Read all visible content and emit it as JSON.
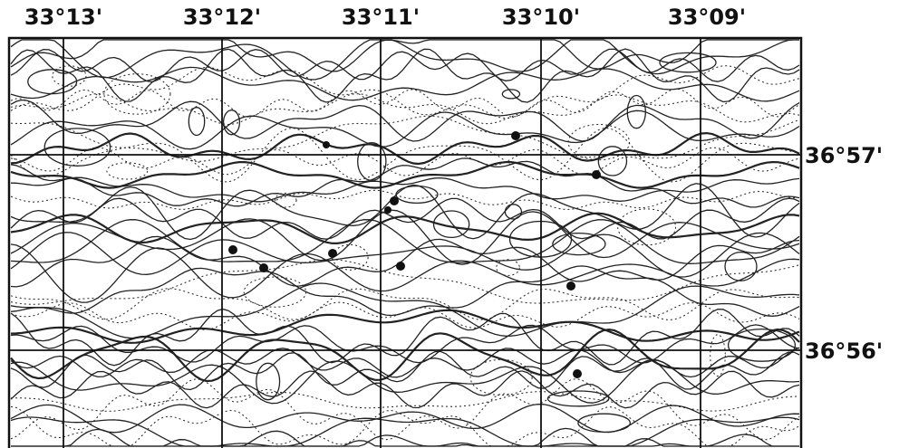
{
  "longitude_labels": [
    "33°13'",
    "33°12'",
    "33°11'",
    "33°10'",
    "33°09'"
  ],
  "latitude_labels": [
    "36°57'",
    "36°56'"
  ]
}
